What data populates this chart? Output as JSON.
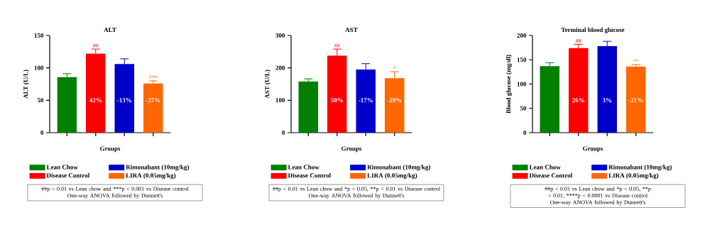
{
  "chart_data": [
    {
      "type": "bar",
      "title": "ALT",
      "xlabel": "Groups",
      "ylabel": "ALT (U/L)",
      "categories": [
        null,
        null,
        null,
        null
      ],
      "series": [
        {
          "name": "Lean Chow",
          "color": "#008000",
          "values": [
            86,
            null,
            null,
            null
          ],
          "errors": [
            5,
            null,
            null,
            null
          ]
        },
        {
          "name": "Disease Control",
          "color": "#ff0000",
          "values": [
            null,
            122,
            null,
            null
          ],
          "errors": [
            null,
            7,
            null,
            null
          ]
        },
        {
          "name": "Rimonabant (10mg/kg)",
          "color": "#0000cc",
          "values": [
            null,
            null,
            106,
            null
          ],
          "errors": [
            null,
            null,
            8,
            null
          ]
        },
        {
          "name": "LIRA (0.05mg/kg)",
          "color": "#ff6600",
          "values": [
            null,
            null,
            null,
            76
          ],
          "errors": [
            null,
            null,
            null,
            4
          ]
        }
      ],
      "ylim": [
        0,
        150
      ],
      "yticks": [
        0,
        50,
        100,
        150
      ],
      "tick_labels": "y",
      "legend": "bottom",
      "annotations": [
        "42%",
        "##",
        "-13%",
        "-37%",
        "***",
        "##p < 0.01 vs Lean chow and ***p < 0.001 vs Disease control",
        "One-way ANOVA followed by Dunnett's"
      ]
    },
    {
      "type": "bar",
      "title": "AST",
      "xlabel": "Groups",
      "ylabel": "AST (U/L)",
      "categories": [
        null,
        null,
        null,
        null
      ],
      "series": [
        {
          "name": "Lean Chow",
          "color": "#008000",
          "values": [
            158,
            null,
            null,
            null
          ],
          "errors": [
            8,
            null,
            null,
            null
          ]
        },
        {
          "name": "Disease Control",
          "color": "#ff0000",
          "values": [
            null,
            238,
            null,
            null
          ],
          "errors": [
            null,
            20,
            null,
            null
          ]
        },
        {
          "name": "Rimonabant (10mg/kg)",
          "color": "#0000cc",
          "values": [
            null,
            null,
            195,
            null
          ],
          "errors": [
            null,
            null,
            18,
            null
          ]
        },
        {
          "name": "LIRA (0.05mg/kg)",
          "color": "#ff6600",
          "values": [
            null,
            null,
            null,
            168
          ],
          "errors": [
            null,
            null,
            null,
            20
          ]
        }
      ],
      "ylim": [
        0,
        300
      ],
      "yticks": [
        0,
        100,
        200,
        300
      ],
      "tick_labels": "y",
      "legend": "bottom",
      "annotations": [
        "50%",
        "##",
        "-17%",
        "-29%",
        "*",
        "##p < 0.01 vs Lean chow and *p < 0.05, **p < 0.01 vs Disease control",
        "One-way ANOVA followed by Dunnett's"
      ]
    },
    {
      "type": "bar",
      "title": "Terminal blood glucose",
      "xlabel": "Groups",
      "ylabel": "Blood glucose (mg/dl)",
      "categories": [
        null,
        null,
        null,
        null
      ],
      "series": [
        {
          "name": "Lean Chow",
          "color": "#008000",
          "values": [
            137,
            null,
            null,
            null
          ],
          "errors": [
            7,
            null,
            null,
            null
          ]
        },
        {
          "name": "Disease Control",
          "color": "#ff0000",
          "values": [
            null,
            174,
            null,
            null
          ],
          "errors": [
            null,
            8,
            null,
            null
          ]
        },
        {
          "name": "Rimonabant (10mg/kg)",
          "color": "#0000cc",
          "values": [
            null,
            null,
            178,
            null
          ],
          "errors": [
            null,
            null,
            10,
            null
          ]
        },
        {
          "name": "LIRA (0.05mg/kg)",
          "color": "#ff6600",
          "values": [
            null,
            null,
            null,
            136
          ],
          "errors": [
            null,
            null,
            null,
            4
          ]
        }
      ],
      "ylim": [
        0,
        200
      ],
      "yticks": [
        0,
        50,
        100,
        150,
        200
      ],
      "tick_labels": "y",
      "legend": "bottom",
      "annotations": [
        "26%",
        "##",
        "3%",
        "-21%",
        "**",
        "##p < 0.01 vs Lean chow and *p < 0.05,",
        "**p < 0.01,",
        "****p < 0.0001 vs Disease control",
        "One-way ANOVA followed by Dunnett's"
      ]
    }
  ]
}
